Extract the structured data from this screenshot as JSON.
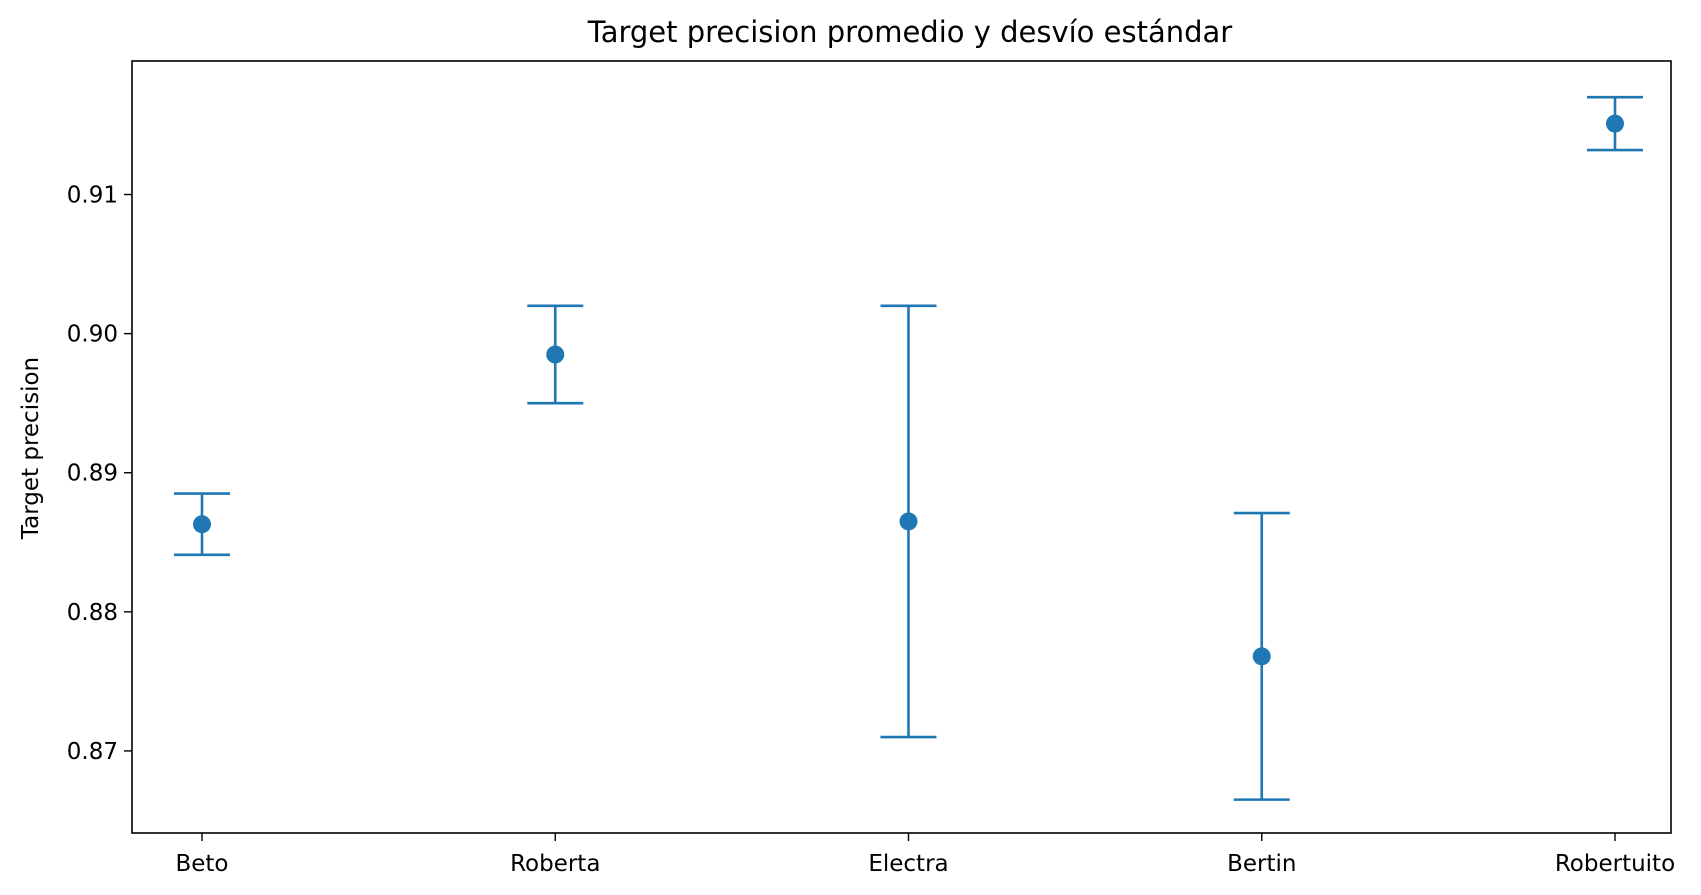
{
  "chart_data": {
    "type": "scatter",
    "title": "Target precision promedio y desvío estándar",
    "xlabel": "",
    "ylabel": "Target precision",
    "categories": [
      "Beto",
      "Roberta",
      "Electra",
      "Bertin",
      "Robertuito"
    ],
    "means": [
      0.8863,
      0.8985,
      0.8865,
      0.8768,
      0.9151
    ],
    "std": [
      0.0022,
      0.0035,
      0.0155,
      0.0103,
      0.0019
    ],
    "yticks": [
      0.87,
      0.88,
      0.89,
      0.9,
      0.91
    ],
    "ytick_labels": [
      "0.87",
      "0.88",
      "0.89",
      "0.90",
      "0.91"
    ],
    "ylim": [
      0.8641,
      0.9196
    ],
    "grid": false,
    "color": "#1f77b4"
  }
}
